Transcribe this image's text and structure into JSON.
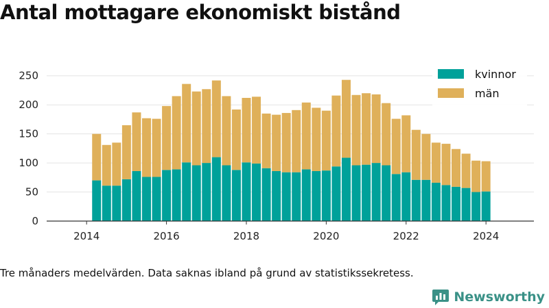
{
  "title": "Antal mottagare ekonomiskt bistånd",
  "footnote": "Tre månaders medelvärden. Data saknas ibland på grund av statistikssekretess.",
  "brand": {
    "name": "Newsworthy",
    "color": "#3a9187",
    "icon": "bar-chart-speech-bubble-icon"
  },
  "chart_data": {
    "type": "bar",
    "stacked": true,
    "x_axis": {
      "type": "time",
      "range": [
        2013.0,
        2025.2
      ],
      "ticks": [
        "2014",
        "2016",
        "2018",
        "2020",
        "2022",
        "2024"
      ]
    },
    "y_axis": {
      "range": [
        0,
        265
      ],
      "ticks": [
        "0",
        "50",
        "100",
        "150",
        "200",
        "250"
      ]
    },
    "grid": true,
    "legend": {
      "position": "top-right"
    },
    "x": [
      2014.25,
      2014.5,
      2014.75,
      2015.0,
      2015.25,
      2015.5,
      2015.75,
      2016.0,
      2016.25,
      2016.5,
      2016.75,
      2017.0,
      2017.25,
      2017.5,
      2017.75,
      2018.0,
      2018.25,
      2018.5,
      2018.75,
      2019.0,
      2019.25,
      2019.5,
      2019.75,
      2020.0,
      2020.25,
      2020.5,
      2020.75,
      2021.0,
      2021.25,
      2021.5,
      2021.75,
      2022.0,
      2022.25,
      2022.5,
      2022.75,
      2023.0,
      2023.25,
      2023.5,
      2023.75,
      2024.0
    ],
    "series": [
      {
        "name": "kvinnor",
        "color": "#00a19a",
        "values": [
          70,
          61,
          61,
          72,
          86,
          76,
          76,
          88,
          89,
          101,
          96,
          100,
          110,
          96,
          88,
          101,
          99,
          91,
          86,
          84,
          84,
          89,
          86,
          87,
          94,
          109,
          96,
          97,
          100,
          96,
          81,
          84,
          71,
          71,
          66,
          62,
          59,
          57,
          50,
          51
        ]
      },
      {
        "name": "män",
        "color": "#dfb05a",
        "values": [
          80,
          70,
          74,
          93,
          101,
          101,
          100,
          110,
          126,
          135,
          127,
          127,
          132,
          119,
          104,
          111,
          115,
          94,
          97,
          102,
          107,
          115,
          109,
          103,
          122,
          134,
          121,
          123,
          118,
          107,
          95,
          98,
          86,
          79,
          69,
          71,
          65,
          59,
          54,
          52
        ]
      }
    ]
  }
}
